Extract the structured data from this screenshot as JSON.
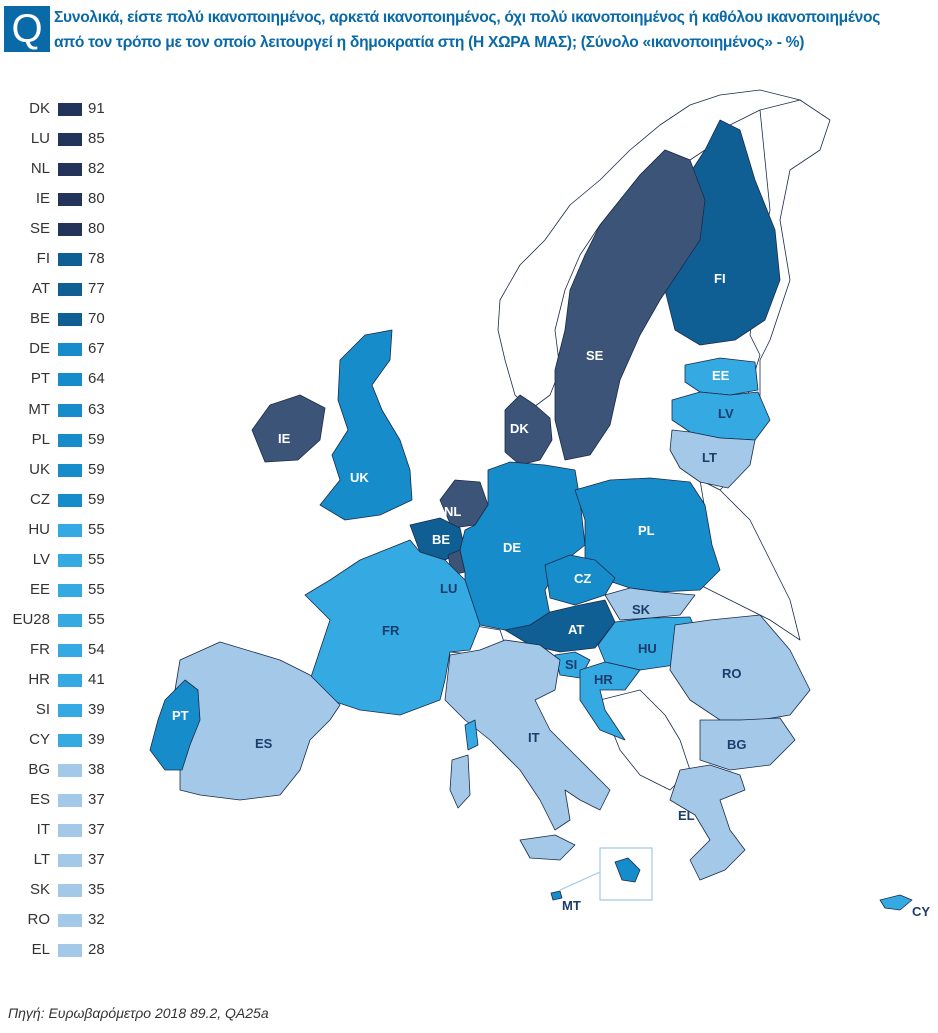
{
  "header": {
    "badge": "Q",
    "title_line1": "Συνολικά, είστε πολύ ικανοποιημένος, αρκετά ικανοποιημένος, όχι πολύ ικανοποιημένος ή καθόλου ικανοποιημένος",
    "title_line2": "από τον τρόπο με τον οποίο λειτουργεί η δημοκρατία στη (Η ΧΩΡΑ ΜΑΣ);  (Σύνολο «ικανοποιημένος» - %)"
  },
  "colors": {
    "very_dark": "#22345a",
    "dark": "#0f5f95",
    "mid": "#168ccb",
    "light": "#35a9e2",
    "pale": "#a3c8e8",
    "non_eu": "#ffffff"
  },
  "legend": [
    {
      "code": "DK",
      "value": "91",
      "color": "#22345a"
    },
    {
      "code": "LU",
      "value": "85",
      "color": "#22345a"
    },
    {
      "code": "NL",
      "value": "82",
      "color": "#22345a"
    },
    {
      "code": "IE",
      "value": "80",
      "color": "#22345a"
    },
    {
      "code": "SE",
      "value": "80",
      "color": "#22345a"
    },
    {
      "code": "FI",
      "value": "78",
      "color": "#0f5f95"
    },
    {
      "code": "AT",
      "value": "77",
      "color": "#0f5f95"
    },
    {
      "code": "BE",
      "value": "70",
      "color": "#0f5f95"
    },
    {
      "code": "DE",
      "value": "67",
      "color": "#168ccb"
    },
    {
      "code": "PT",
      "value": "64",
      "color": "#168ccb"
    },
    {
      "code": "MT",
      "value": "63",
      "color": "#168ccb"
    },
    {
      "code": "PL",
      "value": "59",
      "color": "#168ccb"
    },
    {
      "code": "UK",
      "value": "59",
      "color": "#168ccb"
    },
    {
      "code": "CZ",
      "value": "59",
      "color": "#168ccb"
    },
    {
      "code": "HU",
      "value": "55",
      "color": "#35a9e2"
    },
    {
      "code": "LV",
      "value": "55",
      "color": "#35a9e2"
    },
    {
      "code": "EE",
      "value": "55",
      "color": "#35a9e2"
    },
    {
      "code": "EU28",
      "value": "55",
      "color": "#35a9e2"
    },
    {
      "code": "FR",
      "value": "54",
      "color": "#35a9e2"
    },
    {
      "code": "HR",
      "value": "41",
      "color": "#35a9e2"
    },
    {
      "code": "SI",
      "value": "39",
      "color": "#35a9e2"
    },
    {
      "code": "CY",
      "value": "39",
      "color": "#35a9e2"
    },
    {
      "code": "BG",
      "value": "38",
      "color": "#a3c8e8"
    },
    {
      "code": "ES",
      "value": "37",
      "color": "#a3c8e8"
    },
    {
      "code": "IT",
      "value": "37",
      "color": "#a3c8e8"
    },
    {
      "code": "LT",
      "value": "37",
      "color": "#a3c8e8"
    },
    {
      "code": "SK",
      "value": "35",
      "color": "#a3c8e8"
    },
    {
      "code": "RO",
      "value": "32",
      "color": "#a3c8e8"
    },
    {
      "code": "EL",
      "value": "28",
      "color": "#a3c8e8"
    }
  ],
  "map_labels": {
    "IE": "IE",
    "UK": "UK",
    "DK": "DK",
    "NL": "NL",
    "BE": "BE",
    "LU": "LU",
    "DE": "DE",
    "FR": "FR",
    "ES": "ES",
    "PT": "PT",
    "IT": "IT",
    "AT": "AT",
    "CZ": "CZ",
    "PL": "PL",
    "SK": "SK",
    "HU": "HU",
    "SI": "SI",
    "HR": "HR",
    "RO": "RO",
    "BG": "BG",
    "EL": "EL",
    "SE": "SE",
    "FI": "FI",
    "EE": "EE",
    "LV": "LV",
    "LT": "LT",
    "MT": "MT",
    "CY": "CY"
  },
  "footer": {
    "source": "Πηγή: Ευρωβαρόμετρο 2018 89.2, QA25a"
  }
}
